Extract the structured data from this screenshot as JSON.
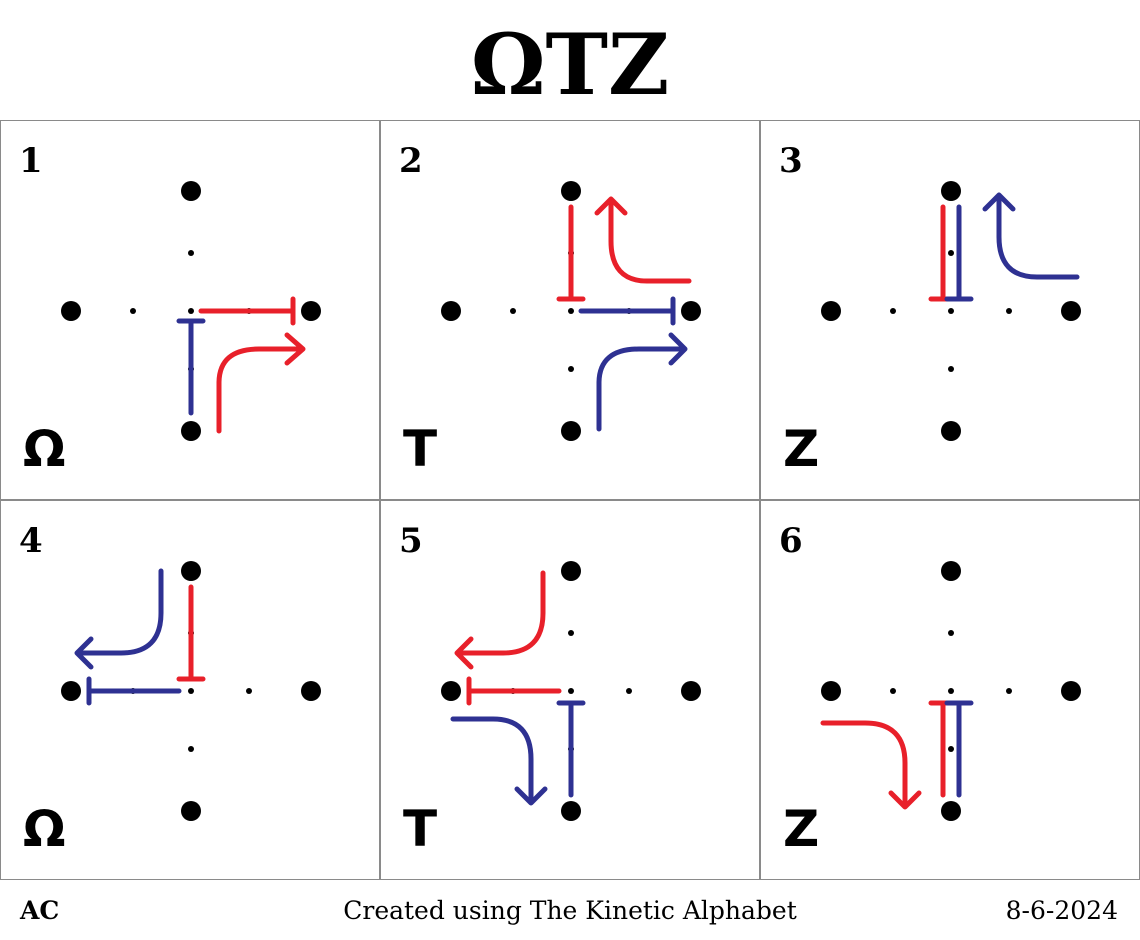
{
  "title": "ΩTZ",
  "colors": {
    "red": "#e8202a",
    "blue": "#2e3192",
    "dot": "#000000",
    "border": "#8a8a8a"
  },
  "panels": [
    {
      "number": "1",
      "letter": "Ω"
    },
    {
      "number": "2",
      "letter": "T"
    },
    {
      "number": "3",
      "letter": "Z"
    },
    {
      "number": "4",
      "letter": "Ω"
    },
    {
      "number": "5",
      "letter": "T"
    },
    {
      "number": "6",
      "letter": "Z"
    }
  ],
  "footer": {
    "left": "AC",
    "center": "Created using The Kinetic Alphabet",
    "right": "8-6-2024"
  }
}
